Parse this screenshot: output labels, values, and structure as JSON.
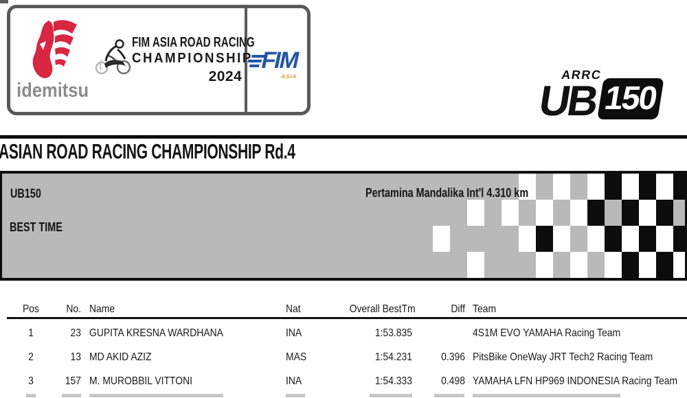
{
  "header": {
    "sponsor": {
      "wordmark": "idemitsu",
      "mark_color": "#d92643"
    },
    "series": {
      "line1": "FIM ASIA ROAD RACING",
      "line2": "CHAMPIONSHIP",
      "year": "2024"
    },
    "fim": {
      "wordmark": "FIM",
      "region": "ASIA",
      "color": "#2456a4",
      "region_color": "#e49a35"
    },
    "class_badge": {
      "series": "ARRC",
      "class_letters": "UB",
      "class_number": "150"
    }
  },
  "title": "ASIAN ROAD RACING CHAMPIONSHIP Rd.4",
  "event": {
    "class_name": "UB150",
    "session": "BEST TIME",
    "circuit": "Pertamina Mandalika Int'l 4.310 km",
    "band_bg": "#b9b9b9",
    "checker_rows": [
      "gggggwgwgwbwbwb",
      "ggwgwgwgwbgbwbg",
      "wggggwbwgwbwbwb",
      "ggwgggwgwgwbwbw"
    ]
  },
  "results": {
    "columns": {
      "pos": "Pos",
      "no": "No.",
      "name": "Name",
      "nat": "Nat",
      "best": "Overall BestTm",
      "diff": "Diff",
      "team": "Team"
    },
    "rows": [
      {
        "pos": "1",
        "no": "23",
        "name": "GUPITA KRESNA WARDHANA",
        "nat": "INA",
        "best": "1:53.835",
        "diff": "",
        "team": "4S1M EVO YAMAHA Racing Team"
      },
      {
        "pos": "2",
        "no": "13",
        "name": "MD AKID AZIZ",
        "nat": "MAS",
        "best": "1:54.231",
        "diff": "0.396",
        "team": "PitsBike OneWay JRT Tech2 Racing Team"
      },
      {
        "pos": "3",
        "no": "157",
        "name": "M. MUROBBIL VITTONI",
        "nat": "INA",
        "best": "1:54.333",
        "diff": "0.498",
        "team": "YAMAHA LFN HP969 INDONESIA Racing Team"
      }
    ]
  }
}
